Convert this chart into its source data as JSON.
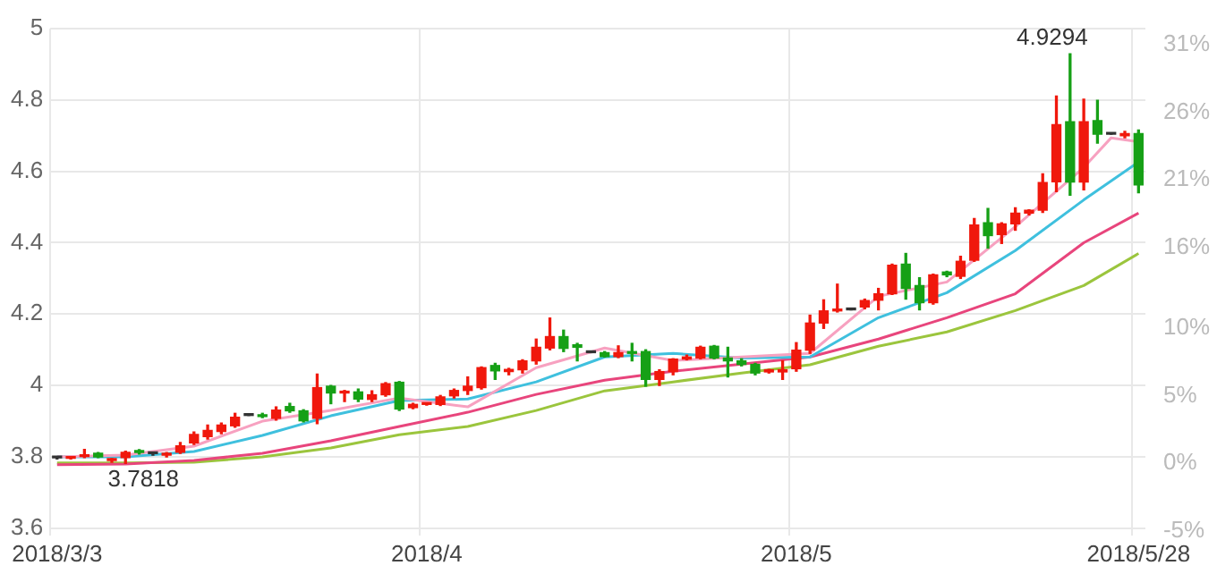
{
  "chart_data": {
    "type": "candlestick",
    "categories": [
      "2018/3/3",
      null,
      null,
      null,
      null,
      null,
      null,
      null,
      null,
      null,
      null,
      null,
      null,
      null,
      null,
      null,
      null,
      null,
      null,
      null,
      null,
      null,
      null,
      null,
      null,
      null,
      null,
      "2018/4",
      null,
      null,
      null,
      null,
      null,
      null,
      null,
      null,
      null,
      null,
      null,
      null,
      null,
      null,
      null,
      null,
      null,
      null,
      null,
      null,
      null,
      null,
      null,
      null,
      null,
      null,
      "2018/5",
      null,
      null,
      null,
      null,
      null,
      null,
      null,
      null,
      null,
      null,
      null,
      null,
      null,
      null,
      null,
      null,
      null,
      null,
      null,
      null,
      null,
      null,
      null,
      null,
      "2018/5/28"
    ],
    "ohlc": [
      [
        3.797,
        3.8,
        3.794,
        3.797
      ],
      [
        3.796,
        3.8,
        3.794,
        3.798
      ],
      [
        3.801,
        3.821,
        3.798,
        3.806
      ],
      [
        3.81,
        3.812,
        3.798,
        3.8
      ],
      [
        3.79,
        3.795,
        3.785,
        3.793
      ],
      [
        3.798,
        3.816,
        3.7818,
        3.813
      ],
      [
        3.818,
        3.82,
        3.808,
        3.812
      ],
      [
        3.809,
        3.81,
        3.805,
        3.809
      ],
      [
        3.805,
        3.812,
        3.8,
        3.808
      ],
      [
        3.813,
        3.84,
        3.81,
        3.831
      ],
      [
        3.839,
        3.87,
        3.835,
        3.863
      ],
      [
        3.857,
        3.889,
        3.85,
        3.874
      ],
      [
        3.871,
        3.895,
        3.865,
        3.889
      ],
      [
        3.887,
        3.922,
        3.883,
        3.911
      ],
      [
        3.916,
        3.916,
        3.916,
        3.916
      ],
      [
        3.918,
        3.922,
        3.91,
        3.913
      ],
      [
        3.908,
        3.94,
        3.903,
        3.931
      ],
      [
        3.941,
        3.95,
        3.925,
        3.929
      ],
      [
        3.929,
        3.932,
        3.898,
        3.901
      ],
      [
        3.908,
        4.032,
        3.893,
        3.994
      ],
      [
        3.998,
        4.0,
        3.949,
        3.979
      ],
      [
        3.979,
        3.986,
        3.955,
        3.983
      ],
      [
        3.982,
        3.99,
        3.955,
        3.962
      ],
      [
        3.961,
        3.985,
        3.955,
        3.974
      ],
      [
        3.974,
        4.008,
        3.97,
        4.005
      ],
      [
        4.009,
        4.011,
        3.93,
        3.934
      ],
      [
        3.938,
        3.95,
        3.935,
        3.947
      ],
      [
        3.947,
        3.95,
        3.945,
        3.948
      ],
      [
        3.947,
        3.972,
        3.944,
        3.968
      ],
      [
        3.971,
        3.99,
        3.965,
        3.986
      ],
      [
        3.986,
        4.024,
        3.975,
        3.998
      ],
      [
        3.994,
        4.052,
        3.99,
        4.05
      ],
      [
        4.056,
        4.062,
        4.017,
        4.041
      ],
      [
        4.039,
        4.048,
        4.03,
        4.045
      ],
      [
        4.044,
        4.072,
        4.035,
        4.069
      ],
      [
        4.069,
        4.13,
        4.06,
        4.107
      ],
      [
        4.105,
        4.189,
        4.1,
        4.137
      ],
      [
        4.137,
        4.155,
        4.095,
        4.104
      ],
      [
        4.114,
        4.118,
        4.069,
        4.107
      ],
      [
        4.092,
        4.092,
        4.092,
        4.092
      ],
      [
        4.092,
        4.095,
        4.08,
        4.081
      ],
      [
        4.081,
        4.111,
        4.078,
        4.092
      ],
      [
        4.095,
        4.118,
        4.069,
        4.09
      ],
      [
        4.095,
        4.1,
        3.998,
        4.017
      ],
      [
        4.017,
        4.044,
        4.0,
        4.039
      ],
      [
        4.039,
        4.075,
        4.03,
        4.074
      ],
      [
        4.074,
        4.085,
        4.072,
        4.08
      ],
      [
        4.077,
        4.11,
        4.075,
        4.107
      ],
      [
        4.11,
        4.112,
        4.075,
        4.077
      ],
      [
        4.077,
        4.107,
        4.024,
        4.069
      ],
      [
        4.069,
        4.075,
        4.055,
        4.059
      ],
      [
        4.059,
        4.062,
        4.03,
        4.035
      ],
      [
        4.038,
        4.045,
        4.035,
        4.044
      ],
      [
        4.038,
        4.069,
        4.017,
        4.044
      ],
      [
        4.047,
        4.12,
        4.04,
        4.099
      ],
      [
        4.099,
        4.197,
        4.09,
        4.175
      ],
      [
        4.175,
        4.24,
        4.16,
        4.209
      ],
      [
        4.209,
        4.284,
        4.206,
        4.212
      ],
      [
        4.212,
        4.212,
        4.212,
        4.212
      ],
      [
        4.22,
        4.242,
        4.215,
        4.238
      ],
      [
        4.239,
        4.272,
        4.212,
        4.257
      ],
      [
        4.257,
        4.34,
        4.255,
        4.337
      ],
      [
        4.34,
        4.37,
        4.242,
        4.272
      ],
      [
        4.28,
        4.302,
        4.212,
        4.232
      ],
      [
        4.232,
        4.312,
        4.228,
        4.31
      ],
      [
        4.318,
        4.32,
        4.305,
        4.31
      ],
      [
        4.306,
        4.362,
        4.3,
        4.348
      ],
      [
        4.351,
        4.468,
        4.348,
        4.45
      ],
      [
        4.456,
        4.496,
        4.385,
        4.42
      ],
      [
        4.423,
        4.456,
        4.398,
        4.453
      ],
      [
        4.453,
        4.498,
        4.435,
        4.483
      ],
      [
        4.483,
        4.492,
        4.478,
        4.491
      ],
      [
        4.491,
        4.593,
        4.485,
        4.569
      ],
      [
        4.571,
        4.811,
        4.543,
        4.731
      ],
      [
        4.739,
        4.9294,
        4.533,
        4.57
      ],
      [
        4.57,
        4.802,
        4.548,
        4.739
      ],
      [
        4.742,
        4.799,
        4.679,
        4.704
      ],
      [
        4.704,
        4.704,
        4.704,
        4.704
      ],
      [
        4.7,
        4.712,
        4.694,
        4.706
      ],
      [
        4.706,
        4.716,
        4.54,
        4.562
      ]
    ],
    "colors": [
      "#333333",
      "#f0180c",
      "#f0180c",
      "#16a016",
      "#f0180c",
      "#f0180c",
      "#16a016",
      "#333333",
      "#f0180c",
      "#f0180c",
      "#f0180c",
      "#f0180c",
      "#f0180c",
      "#f0180c",
      "#333333",
      "#16a016",
      "#f0180c",
      "#16a016",
      "#16a016",
      "#f0180c",
      "#16a016",
      "#f0180c",
      "#16a016",
      "#f0180c",
      "#f0180c",
      "#16a016",
      "#f0180c",
      "#f0180c",
      "#f0180c",
      "#f0180c",
      "#f0180c",
      "#f0180c",
      "#16a016",
      "#f0180c",
      "#f0180c",
      "#f0180c",
      "#f0180c",
      "#16a016",
      "#16a016",
      "#333333",
      "#16a016",
      "#f0180c",
      "#16a016",
      "#16a016",
      "#f0180c",
      "#f0180c",
      "#f0180c",
      "#f0180c",
      "#16a016",
      "#16a016",
      "#16a016",
      "#16a016",
      "#f0180c",
      "#f0180c",
      "#f0180c",
      "#f0180c",
      "#f0180c",
      "#f0180c",
      "#333333",
      "#f0180c",
      "#f0180c",
      "#f0180c",
      "#16a016",
      "#16a016",
      "#f0180c",
      "#16a016",
      "#f0180c",
      "#f0180c",
      "#16a016",
      "#f0180c",
      "#f0180c",
      "#f0180c",
      "#f0180c",
      "#f0180c",
      "#16a016",
      "#f0180c",
      "#16a016",
      "#333333",
      "#f0180c",
      "#16a016"
    ],
    "series": [
      {
        "type": "line",
        "color": "#f7a1c0",
        "values": [
          3.8,
          null,
          null,
          null,
          null,
          3.805,
          null,
          null,
          null,
          null,
          3.83,
          null,
          null,
          null,
          null,
          3.9,
          null,
          null,
          null,
          null,
          3.93,
          null,
          null,
          null,
          null,
          3.965,
          null,
          null,
          null,
          null,
          3.94,
          null,
          null,
          null,
          null,
          4.05,
          null,
          null,
          null,
          null,
          4.105,
          null,
          null,
          null,
          null,
          4.07,
          null,
          null,
          null,
          null,
          4.08,
          null,
          null,
          null,
          null,
          4.09,
          null,
          null,
          null,
          null,
          4.25,
          null,
          null,
          null,
          null,
          4.29,
          null,
          null,
          null,
          null,
          4.445,
          null,
          null,
          null,
          null,
          4.611,
          null,
          4.694,
          null,
          4.683
        ]
      },
      {
        "type": "line",
        "color": "#3fc0de",
        "values": [
          3.8,
          null,
          null,
          null,
          null,
          3.8,
          null,
          null,
          null,
          null,
          3.815,
          null,
          null,
          null,
          null,
          3.86,
          null,
          null,
          null,
          null,
          3.915,
          null,
          null,
          null,
          null,
          3.958,
          null,
          null,
          null,
          null,
          3.962,
          null,
          null,
          null,
          null,
          4.01,
          null,
          null,
          null,
          null,
          4.08,
          null,
          null,
          null,
          null,
          4.09,
          null,
          null,
          null,
          null,
          4.077,
          null,
          null,
          null,
          null,
          4.08,
          null,
          null,
          null,
          null,
          4.19,
          null,
          null,
          null,
          null,
          4.26,
          null,
          null,
          null,
          null,
          4.378,
          null,
          null,
          null,
          null,
          4.52,
          null,
          null,
          null,
          4.626
        ]
      },
      {
        "type": "line",
        "color": "#e8457c",
        "values": [
          3.778,
          null,
          null,
          null,
          null,
          3.78,
          null,
          null,
          null,
          null,
          3.79,
          null,
          null,
          null,
          null,
          3.81,
          null,
          null,
          null,
          null,
          3.845,
          null,
          null,
          null,
          null,
          3.885,
          null,
          null,
          null,
          null,
          3.925,
          null,
          null,
          null,
          null,
          3.975,
          null,
          null,
          null,
          null,
          4.015,
          null,
          null,
          null,
          null,
          4.04,
          null,
          null,
          null,
          null,
          4.06,
          null,
          null,
          null,
          null,
          4.08,
          null,
          null,
          null,
          null,
          4.13,
          null,
          null,
          null,
          null,
          4.19,
          null,
          null,
          null,
          null,
          4.257,
          null,
          null,
          null,
          null,
          4.4,
          null,
          null,
          null,
          4.483
        ]
      },
      {
        "type": "line",
        "color": "#9bc53d",
        "values": [
          3.783,
          null,
          null,
          null,
          null,
          3.783,
          null,
          null,
          null,
          null,
          3.785,
          null,
          null,
          null,
          null,
          3.8,
          null,
          null,
          null,
          null,
          3.825,
          null,
          null,
          null,
          null,
          3.862,
          null,
          null,
          null,
          null,
          3.885,
          null,
          null,
          null,
          null,
          3.93,
          null,
          null,
          null,
          null,
          3.985,
          null,
          null,
          null,
          null,
          4.01,
          null,
          null,
          null,
          null,
          4.035,
          null,
          null,
          null,
          null,
          4.058,
          null,
          null,
          null,
          null,
          4.11,
          null,
          null,
          null,
          null,
          4.15,
          null,
          null,
          null,
          null,
          4.21,
          null,
          null,
          null,
          null,
          4.28,
          null,
          null,
          null,
          4.37
        ]
      }
    ],
    "ylim": [
      3.58,
      5
    ],
    "yticks": [
      3.6,
      3.8,
      4,
      4.2,
      4.4,
      4.6,
      4.8,
      5
    ],
    "y2lim": [
      -5.34,
      32.21
    ],
    "y2ticks": [
      {
        "value": -5,
        "label": "-5%"
      },
      {
        "value": 0,
        "label": "0%"
      },
      {
        "value": 5,
        "label": "5%"
      },
      {
        "value": 10,
        "label": "10%"
      },
      {
        "value": 16,
        "label": "16%"
      },
      {
        "value": 21,
        "label": "21%"
      },
      {
        "value": 26,
        "label": "26%"
      },
      {
        "value": 31,
        "label": "31%"
      }
    ],
    "grid": true,
    "annotations": [
      {
        "text": "3.7818",
        "y": 3.7818
      },
      "4.9294"
    ]
  }
}
